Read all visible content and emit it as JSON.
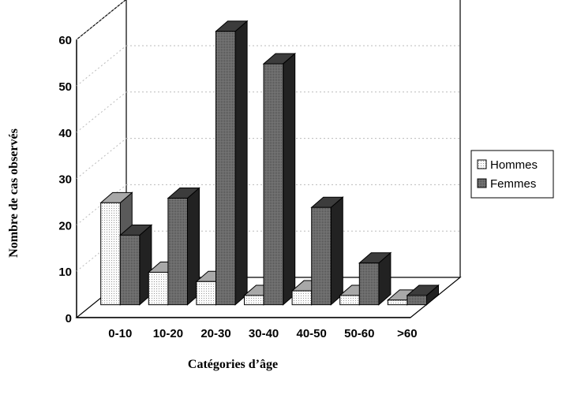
{
  "chart_data": {
    "type": "bar",
    "style": "3d-clustered",
    "title": "",
    "xlabel": "Catégories d’âge",
    "ylabel": "Nombre de cas observés",
    "ylim": [
      0,
      60
    ],
    "yticks": [
      "0",
      "10",
      "20",
      "30",
      "40",
      "50",
      "60"
    ],
    "categories": [
      "0-10",
      "10-20",
      "20-30",
      "30-40",
      "40-50",
      "50-60",
      ">60"
    ],
    "series": [
      {
        "name": "Hommes",
        "values": [
          22,
          7,
          5,
          2,
          3,
          2,
          1
        ],
        "color": "#f2f2f2"
      },
      {
        "name": "Femmes",
        "values": [
          15,
          23,
          59,
          52,
          21,
          9,
          2
        ],
        "color": "#6a6a6a"
      }
    ],
    "grid": true,
    "legend": "right"
  }
}
